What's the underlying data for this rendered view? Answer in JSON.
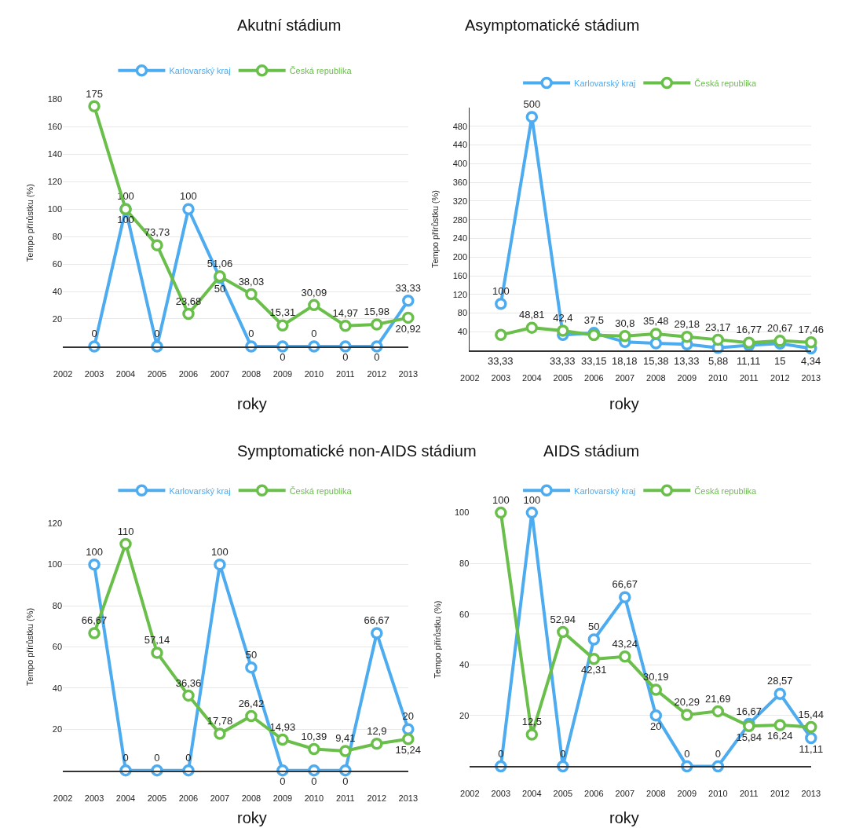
{
  "chart_data": [
    {
      "type": "line",
      "title": "Akutní stádium",
      "xlabel": "roky",
      "ylabel": "Tempo přírůstku (%)",
      "x": [
        2003,
        2004,
        2005,
        2006,
        2007,
        2008,
        2009,
        2010,
        2011,
        2012,
        2013
      ],
      "xlim": [
        2002,
        2013
      ],
      "xticks": [
        2002,
        2003,
        2004,
        2005,
        2006,
        2007,
        2008,
        2009,
        2010,
        2011,
        2012,
        2013
      ],
      "ylim": [
        0,
        180
      ],
      "yticks": [
        20,
        40,
        60,
        80,
        100,
        120,
        140,
        160,
        180
      ],
      "grid": "y",
      "legend": "top",
      "marker": "circle",
      "line_style": "solid",
      "series": [
        {
          "name": "Karlovarský kraj",
          "color": "#4dabf0",
          "values": [
            0,
            100,
            0,
            100,
            50,
            0,
            0,
            0,
            0,
            0,
            33.33
          ],
          "value_labels": [
            "0",
            "100",
            "0",
            "100",
            "50",
            "0",
            "0",
            "0",
            "0",
            "0",
            "33,33"
          ]
        },
        {
          "name": "Česká republika",
          "color": "#6abf4b",
          "values": [
            175,
            100,
            73.73,
            23.68,
            51.06,
            38.03,
            15.31,
            30.09,
            14.97,
            15.98,
            20.92
          ],
          "value_labels": [
            "175",
            "100",
            "73,73",
            "23,68",
            "51,06",
            "38,03",
            "15,31",
            "30,09",
            "14,97",
            "15,98",
            "20,92"
          ]
        }
      ]
    },
    {
      "type": "line",
      "title": "Asymptomatické stádium",
      "xlabel": "roky",
      "ylabel": "Tempo přírůstku (%)",
      "x": [
        2003,
        2004,
        2005,
        2006,
        2007,
        2008,
        2009,
        2010,
        2011,
        2012,
        2013
      ],
      "xlim": [
        2002,
        2013
      ],
      "xticks": [
        2002,
        2003,
        2004,
        2005,
        2006,
        2007,
        2008,
        2009,
        2010,
        2011,
        2012,
        2013
      ],
      "ylim": [
        0,
        520
      ],
      "yticks": [
        40,
        80,
        120,
        160,
        200,
        240,
        280,
        320,
        360,
        400,
        440,
        480
      ],
      "grid": "y",
      "legend": "top",
      "marker": "circle",
      "line_style": "solid",
      "series": [
        {
          "name": "Karlovarský kraj",
          "color": "#4dabf0",
          "values": [
            100,
            500,
            33.33,
            37.5,
            18.18,
            15.38,
            13.33,
            5.88,
            11.11,
            15,
            4.34
          ],
          "value_labels": [
            "100",
            "500",
            "33,33",
            "37,5",
            "18,18",
            "15,38",
            "13,33",
            "5,88",
            "11,11",
            "15",
            "4,34"
          ]
        },
        {
          "name": "Česká republika",
          "color": "#6abf4b",
          "values": [
            33.33,
            48.81,
            42.4,
            33.15,
            30.8,
            35.48,
            29.18,
            23.17,
            16.77,
            20.67,
            17.46
          ],
          "value_labels": [
            "33,33",
            "48,81",
            "42,4",
            "33,15",
            "30,8",
            "35,48",
            "29,18",
            "23,17",
            "16,77",
            "20,67",
            "17,46"
          ]
        }
      ]
    },
    {
      "type": "line",
      "title": "Symptomatické non-AIDS stádium",
      "xlabel": "roky",
      "ylabel": "Tempo přírůstku (%)",
      "x": [
        2003,
        2004,
        2005,
        2006,
        2007,
        2008,
        2009,
        2010,
        2011,
        2012,
        2013
      ],
      "xlim": [
        2002,
        2013
      ],
      "xticks": [
        2002,
        2003,
        2004,
        2005,
        2006,
        2007,
        2008,
        2009,
        2010,
        2011,
        2012,
        2013
      ],
      "ylim": [
        0,
        120
      ],
      "yticks": [
        20,
        40,
        60,
        80,
        100,
        120
      ],
      "grid": "y",
      "legend": "top",
      "marker": "circle",
      "line_style": "solid",
      "series": [
        {
          "name": "Karlovarský kraj",
          "color": "#4dabf0",
          "values": [
            100,
            0,
            0,
            0,
            100,
            50,
            0,
            0,
            0,
            66.67,
            20
          ],
          "value_labels": [
            "100",
            "0",
            "0",
            "0",
            "100",
            "50",
            "0",
            "0",
            "0",
            "66,67",
            "20"
          ]
        },
        {
          "name": "Česká republika",
          "color": "#6abf4b",
          "values": [
            66.67,
            110,
            57.14,
            36.36,
            17.78,
            26.42,
            14.93,
            10.39,
            9.41,
            12.9,
            15.24
          ],
          "value_labels": [
            "66,67",
            "110",
            "57,14",
            "36,36",
            "17,78",
            "26,42",
            "14,93",
            "10,39",
            "9,41",
            "12,9",
            "15,24"
          ]
        }
      ]
    },
    {
      "type": "line",
      "title": "AIDS stádium",
      "xlabel": "roky",
      "ylabel": "Tempo přírůstku (%)",
      "x": [
        2003,
        2004,
        2005,
        2006,
        2007,
        2008,
        2009,
        2010,
        2011,
        2012,
        2013
      ],
      "xlim": [
        2002,
        2013
      ],
      "xticks": [
        2002,
        2003,
        2004,
        2005,
        2006,
        2007,
        2008,
        2009,
        2010,
        2011,
        2012,
        2013
      ],
      "ylim": [
        0,
        100
      ],
      "yticks": [
        20,
        40,
        60,
        80,
        100
      ],
      "grid": "y",
      "legend": "top",
      "marker": "circle",
      "line_style": "solid",
      "series": [
        {
          "name": "Karlovarský kraj",
          "color": "#4dabf0",
          "values": [
            0,
            100,
            0,
            50,
            66.67,
            20,
            0,
            0,
            16.67,
            28.57,
            11.11
          ],
          "value_labels": [
            "0",
            "100",
            "0",
            "50",
            "66,67",
            "20",
            "0",
            "0",
            "16,67",
            "28,57",
            "11,11"
          ]
        },
        {
          "name": "Česká republika",
          "color": "#6abf4b",
          "values": [
            100,
            12.5,
            52.94,
            42.31,
            43.24,
            30.19,
            20.29,
            21.69,
            15.84,
            16.24,
            15.44
          ],
          "value_labels": [
            "100",
            "12,5",
            "52,94",
            "42,31",
            "43,24",
            "30,19",
            "20,29",
            "21,69",
            "15,84",
            "16,24",
            "15,44"
          ]
        }
      ]
    }
  ]
}
